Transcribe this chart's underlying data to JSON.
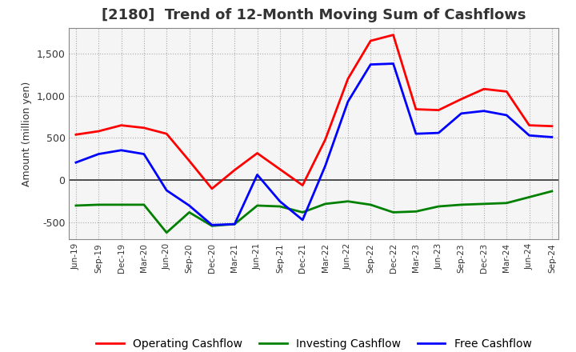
{
  "title": "[2180]  Trend of 12-Month Moving Sum of Cashflows",
  "ylabel": "Amount (million yen)",
  "x_labels": [
    "Jun-19",
    "Sep-19",
    "Dec-19",
    "Mar-20",
    "Jun-20",
    "Sep-20",
    "Dec-20",
    "Mar-21",
    "Jun-21",
    "Sep-21",
    "Dec-21",
    "Mar-22",
    "Jun-22",
    "Sep-22",
    "Dec-22",
    "Mar-23",
    "Jun-23",
    "Sep-23",
    "Dec-23",
    "Mar-24",
    "Jun-24",
    "Sep-24"
  ],
  "operating": [
    540,
    580,
    650,
    620,
    550,
    230,
    -100,
    120,
    320,
    130,
    -60,
    480,
    1200,
    1650,
    1720,
    840,
    830,
    960,
    1080,
    1050,
    650,
    640
  ],
  "investing": [
    -300,
    -290,
    -290,
    -290,
    -620,
    -380,
    -540,
    -520,
    -300,
    -310,
    -380,
    -280,
    -250,
    -290,
    -380,
    -370,
    -310,
    -290,
    -280,
    -270,
    -200,
    -130
  ],
  "free": [
    210,
    310,
    355,
    310,
    -120,
    -300,
    -530,
    -520,
    65,
    -250,
    -470,
    170,
    930,
    1370,
    1380,
    550,
    560,
    790,
    820,
    770,
    530,
    510
  ],
  "ylim": [
    -700,
    1800
  ],
  "yticks": [
    -500,
    0,
    500,
    1000,
    1500
  ],
  "operating_color": "#ff0000",
  "investing_color": "#008000",
  "free_color": "#0000ff",
  "background_color": "#ffffff",
  "plot_bg_color": "#f5f5f5",
  "grid_color": "#aaaaaa",
  "title_fontsize": 13,
  "title_color": "#333333",
  "axis_fontsize": 9,
  "legend_fontsize": 10,
  "linewidth": 2.0
}
